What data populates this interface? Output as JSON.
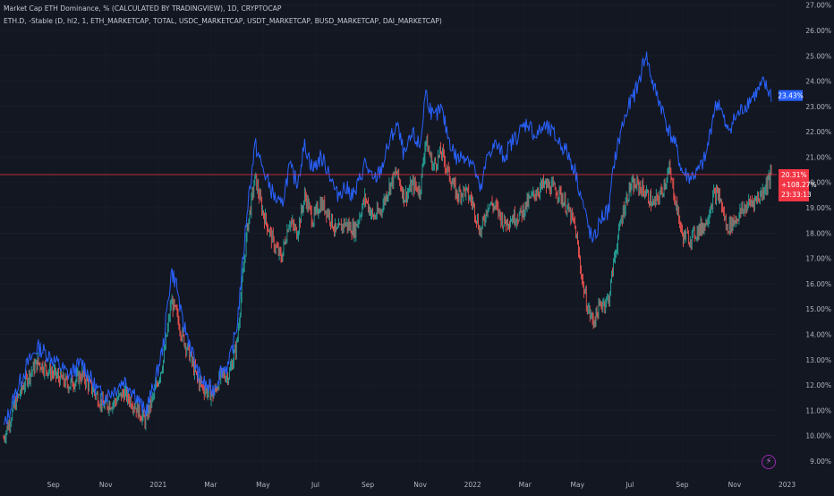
{
  "legend": {
    "line1": "Market Cap ETH Dominance, % (CALCULATED BY TRADINGVIEW), 1D, CRYPTOCAP",
    "line2": "ETH.D, -Stable (D, hl2, 1, ETH_MARKETCAP, TOTAL, USDC_MARKETCAP, USDT_MARKETCAP, BUSD_MARKETCAP, DAI_MARKETCAP)"
  },
  "flash_icon": "lightning-icon",
  "colors": {
    "background": "#131722",
    "up": "#26a69a",
    "down": "#ef5350",
    "indicator": "#2962ff",
    "last_price_line": "#f23645",
    "axis_text": "#b2b5be"
  },
  "price_labels": {
    "indicator_last": "23.43%",
    "price_last": "20.31%",
    "change": "+108.27%",
    "countdown": "23:33:13"
  },
  "chart_data": {
    "type": "line",
    "title": "Market Cap ETH Dominance, % (CALCULATED BY TRADINGVIEW), 1D, CRYPTOCAP",
    "y_ticks": [
      "9.00%",
      "10.00%",
      "11.00%",
      "12.00%",
      "13.00%",
      "14.00%",
      "15.00%",
      "16.00%",
      "17.00%",
      "18.00%",
      "19.00%",
      "20.00%",
      "21.00%",
      "22.00%",
      "23.00%",
      "24.00%",
      "25.00%",
      "26.00%",
      "27.00%"
    ],
    "x_ticks": [
      "Sep",
      "Nov",
      "2021",
      "Mar",
      "May",
      "Jul",
      "Sep",
      "Nov",
      "2022",
      "Mar",
      "May",
      "Jul",
      "Sep",
      "Nov",
      "2023"
    ],
    "x_domain": [
      0,
      29.3
    ],
    "ylim": [
      8.4,
      27.2
    ],
    "x_unit": "months since 2020-07-01",
    "series": [
      {
        "name": "ETH.D",
        "style": "candles",
        "points": [
          [
            0,
            9.9
          ],
          [
            0.5,
            11.4
          ],
          [
            0.9,
            12.3
          ],
          [
            1.3,
            12.9
          ],
          [
            1.7,
            12.6
          ],
          [
            2.1,
            12.3
          ],
          [
            2.5,
            12.0
          ],
          [
            3.0,
            12.4
          ],
          [
            3.4,
            11.8
          ],
          [
            3.8,
            11.2
          ],
          [
            4.2,
            11.3
          ],
          [
            4.6,
            11.7
          ],
          [
            5.0,
            11.2
          ],
          [
            5.4,
            10.6
          ],
          [
            5.8,
            11.8
          ],
          [
            6.1,
            13.0
          ],
          [
            6.4,
            15.3
          ],
          [
            6.6,
            14.8
          ],
          [
            6.8,
            14.0
          ],
          [
            7.1,
            13.2
          ],
          [
            7.4,
            12.2
          ],
          [
            7.7,
            11.8
          ],
          [
            8.0,
            11.6
          ],
          [
            8.3,
            12.4
          ],
          [
            8.6,
            12.4
          ],
          [
            8.9,
            13.6
          ],
          [
            9.1,
            16.0
          ],
          [
            9.3,
            18.2
          ],
          [
            9.6,
            20.2
          ],
          [
            9.9,
            18.8
          ],
          [
            10.3,
            17.6
          ],
          [
            10.6,
            17.0
          ],
          [
            10.9,
            18.5
          ],
          [
            11.2,
            18.0
          ],
          [
            11.5,
            19.5
          ],
          [
            11.8,
            18.5
          ],
          [
            12.1,
            19.2
          ],
          [
            12.4,
            18.8
          ],
          [
            12.7,
            18.0
          ],
          [
            13.0,
            18.4
          ],
          [
            13.4,
            18.1
          ],
          [
            13.8,
            19.4
          ],
          [
            14.1,
            18.6
          ],
          [
            14.4,
            18.9
          ],
          [
            14.7,
            19.8
          ],
          [
            15.0,
            20.4
          ],
          [
            15.3,
            19.4
          ],
          [
            15.6,
            19.9
          ],
          [
            15.9,
            19.7
          ],
          [
            16.1,
            21.7
          ],
          [
            16.4,
            20.6
          ],
          [
            16.7,
            21.2
          ],
          [
            17.0,
            20.3
          ],
          [
            17.3,
            19.5
          ],
          [
            17.6,
            19.7
          ],
          [
            17.9,
            19.2
          ],
          [
            18.2,
            18.0
          ],
          [
            18.5,
            19.2
          ],
          [
            18.8,
            19.0
          ],
          [
            19.1,
            18.4
          ],
          [
            19.4,
            18.6
          ],
          [
            19.7,
            18.7
          ],
          [
            20.0,
            19.2
          ],
          [
            20.3,
            19.6
          ],
          [
            20.6,
            19.9
          ],
          [
            20.9,
            19.8
          ],
          [
            21.2,
            19.6
          ],
          [
            21.5,
            19.0
          ],
          [
            21.8,
            18.3
          ],
          [
            22.1,
            16.0
          ],
          [
            22.3,
            15.0
          ],
          [
            22.5,
            14.5
          ],
          [
            22.8,
            15.2
          ],
          [
            23.1,
            15.4
          ],
          [
            23.3,
            17.0
          ],
          [
            23.6,
            18.7
          ],
          [
            23.9,
            19.8
          ],
          [
            24.2,
            19.9
          ],
          [
            24.5,
            19.6
          ],
          [
            24.8,
            19.1
          ],
          [
            25.1,
            19.6
          ],
          [
            25.4,
            20.5
          ],
          [
            25.6,
            19.5
          ],
          [
            25.9,
            17.9
          ],
          [
            26.2,
            17.8
          ],
          [
            26.5,
            18.1
          ],
          [
            26.8,
            18.4
          ],
          [
            27.1,
            19.5
          ],
          [
            27.3,
            19.5
          ],
          [
            27.6,
            18.2
          ],
          [
            27.9,
            18.5
          ],
          [
            28.2,
            18.9
          ],
          [
            28.5,
            19.2
          ],
          [
            28.8,
            19.4
          ],
          [
            29.0,
            19.7
          ],
          [
            29.3,
            20.31
          ]
        ]
      },
      {
        "name": "ETH.D, -Stable",
        "style": "line",
        "points": [
          [
            0,
            10.3
          ],
          [
            0.5,
            11.8
          ],
          [
            0.9,
            12.8
          ],
          [
            1.3,
            13.5
          ],
          [
            1.7,
            13.2
          ],
          [
            2.1,
            12.8
          ],
          [
            2.5,
            12.4
          ],
          [
            3.0,
            12.9
          ],
          [
            3.4,
            12.1
          ],
          [
            3.8,
            11.5
          ],
          [
            4.2,
            11.8
          ],
          [
            4.6,
            12.2
          ],
          [
            5.0,
            11.7
          ],
          [
            5.4,
            10.9
          ],
          [
            5.8,
            12.2
          ],
          [
            6.1,
            13.6
          ],
          [
            6.4,
            16.5
          ],
          [
            6.6,
            16.0
          ],
          [
            6.8,
            14.6
          ],
          [
            7.1,
            13.7
          ],
          [
            7.4,
            12.5
          ],
          [
            7.7,
            12.0
          ],
          [
            8.0,
            11.8
          ],
          [
            8.3,
            12.6
          ],
          [
            8.6,
            12.8
          ],
          [
            8.9,
            14.3
          ],
          [
            9.1,
            16.5
          ],
          [
            9.3,
            19.0
          ],
          [
            9.6,
            21.5
          ],
          [
            9.9,
            20.5
          ],
          [
            10.3,
            19.5
          ],
          [
            10.6,
            19.0
          ],
          [
            10.9,
            20.6
          ],
          [
            11.2,
            20.0
          ],
          [
            11.5,
            21.5
          ],
          [
            11.8,
            20.5
          ],
          [
            12.1,
            21.0
          ],
          [
            12.4,
            20.5
          ],
          [
            12.7,
            19.5
          ],
          [
            13.0,
            19.8
          ],
          [
            13.4,
            19.5
          ],
          [
            13.8,
            20.8
          ],
          [
            14.1,
            20.0
          ],
          [
            14.4,
            20.5
          ],
          [
            14.7,
            21.5
          ],
          [
            15.0,
            22.3
          ],
          [
            15.3,
            21.0
          ],
          [
            15.6,
            21.9
          ],
          [
            15.9,
            21.4
          ],
          [
            16.1,
            23.6
          ],
          [
            16.4,
            22.5
          ],
          [
            16.7,
            22.9
          ],
          [
            17.0,
            21.7
          ],
          [
            17.3,
            20.9
          ],
          [
            17.6,
            21.1
          ],
          [
            17.9,
            20.8
          ],
          [
            18.2,
            19.6
          ],
          [
            18.5,
            21.2
          ],
          [
            18.8,
            21.5
          ],
          [
            19.1,
            21.0
          ],
          [
            19.4,
            21.6
          ],
          [
            19.7,
            22.0
          ],
          [
            20.0,
            22.4
          ],
          [
            20.3,
            21.8
          ],
          [
            20.6,
            22.2
          ],
          [
            20.9,
            22.0
          ],
          [
            21.2,
            21.6
          ],
          [
            21.5,
            21.2
          ],
          [
            21.8,
            20.5
          ],
          [
            22.1,
            19.2
          ],
          [
            22.3,
            18.3
          ],
          [
            22.5,
            17.6
          ],
          [
            22.8,
            18.6
          ],
          [
            23.1,
            18.9
          ],
          [
            23.3,
            20.8
          ],
          [
            23.6,
            22.2
          ],
          [
            23.9,
            23.1
          ],
          [
            24.2,
            23.8
          ],
          [
            24.5,
            25.1
          ],
          [
            24.8,
            23.8
          ],
          [
            25.1,
            23.0
          ],
          [
            25.4,
            22.0
          ],
          [
            25.6,
            21.6
          ],
          [
            25.9,
            20.4
          ],
          [
            26.2,
            20.2
          ],
          [
            26.5,
            20.4
          ],
          [
            26.8,
            21.0
          ],
          [
            27.1,
            22.8
          ],
          [
            27.3,
            23.2
          ],
          [
            27.6,
            22.0
          ],
          [
            27.9,
            22.5
          ],
          [
            28.2,
            22.9
          ],
          [
            28.5,
            23.3
          ],
          [
            28.8,
            23.6
          ],
          [
            29.0,
            23.9
          ],
          [
            29.3,
            23.43
          ]
        ]
      }
    ]
  }
}
